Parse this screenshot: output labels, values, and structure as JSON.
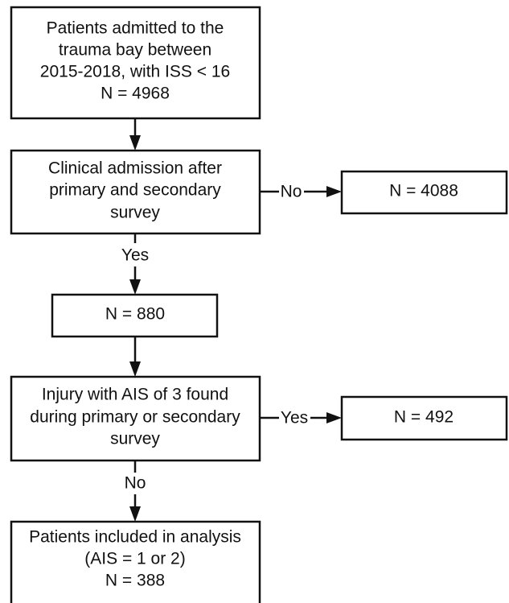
{
  "nodes": [
    {
      "lines": [
        "Patients admitted to the",
        "trauma bay between",
        "2015-2018, with ISS < 16",
        "N = 4968"
      ]
    },
    {
      "lines": [
        "Clinical admission after",
        "primary and secondary",
        "survey"
      ]
    },
    {
      "lines": [
        "N = 4088"
      ]
    },
    {
      "lines": [
        "N = 880"
      ]
    },
    {
      "lines": [
        "Injury with AIS of 3 found",
        "during primary or secondary",
        "survey"
      ]
    },
    {
      "lines": [
        "N = 492"
      ]
    },
    {
      "lines": [
        "Patients included in analysis",
        "(AIS = 1 or 2)",
        "N = 388"
      ]
    }
  ],
  "edges": [
    {
      "label": "No"
    },
    {
      "label": "Yes"
    },
    {
      "label": "Yes"
    },
    {
      "label": "No"
    }
  ]
}
